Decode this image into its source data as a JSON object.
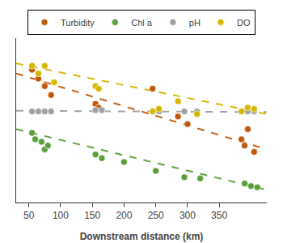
{
  "chart_data": {
    "type": "scatter",
    "xlabel": "Downstream distance (km)",
    "xlim": [
      30,
      425
    ],
    "xticks": [
      50,
      100,
      150,
      200,
      250,
      300,
      350
    ],
    "ylim": [
      0.0,
      13.0
    ],
    "yticks": [],
    "tick_labels": "x",
    "grid": false,
    "legend": "top",
    "marker": "circle",
    "series": [
      {
        "name": "Turbidity",
        "color": "#c0580a",
        "line_style": "dashed",
        "x": [
          55,
          65,
          75,
          85,
          155,
          160,
          245,
          285,
          300,
          385,
          390,
          395,
          405
        ],
        "values": [
          10.5,
          9.8,
          9.2,
          8.5,
          7.8,
          7.5,
          9.0,
          6.8,
          6.2,
          5.0,
          4.5,
          5.8,
          4.0
        ],
        "trend": {
          "x": [
            30,
            425
          ],
          "values": [
            10.2,
            4.2
          ]
        }
      },
      {
        "name": "Chl a",
        "color": "#5a9e3a",
        "line_style": "dashed",
        "x": [
          55,
          60,
          70,
          75,
          80,
          155,
          165,
          200,
          250,
          295,
          320,
          390,
          400,
          410
        ],
        "values": [
          5.5,
          5.0,
          4.8,
          4.2,
          4.5,
          3.8,
          3.5,
          3.2,
          2.5,
          2.0,
          1.9,
          1.5,
          1.3,
          1.2
        ],
        "trend": {
          "x": [
            30,
            425
          ],
          "values": [
            5.8,
            1.0
          ]
        }
      },
      {
        "name": "pH",
        "color": "#a0a0a0",
        "line_style": "dashed",
        "x": [
          55,
          65,
          75,
          85,
          155,
          165,
          245,
          255,
          295,
          315,
          385,
          395,
          405
        ],
        "values": [
          7.2,
          7.2,
          7.2,
          7.2,
          7.3,
          7.3,
          7.2,
          7.2,
          7.2,
          7.2,
          7.2,
          7.2,
          7.2
        ],
        "trend": {
          "x": [
            30,
            425
          ],
          "values": [
            7.25,
            7.15
          ]
        }
      },
      {
        "name": "DO",
        "color": "#d4b800",
        "line_style": "dashed",
        "x": [
          55,
          65,
          75,
          90,
          155,
          160,
          245,
          255,
          285,
          315,
          385,
          395,
          405
        ],
        "values": [
          10.8,
          10.2,
          10.8,
          9.5,
          9.2,
          9.0,
          7.2,
          7.4,
          8.0,
          7.0,
          7.2,
          7.5,
          7.4
        ],
        "trend": {
          "x": [
            30,
            425
          ],
          "values": [
            11.0,
            7.0
          ]
        }
      }
    ]
  }
}
